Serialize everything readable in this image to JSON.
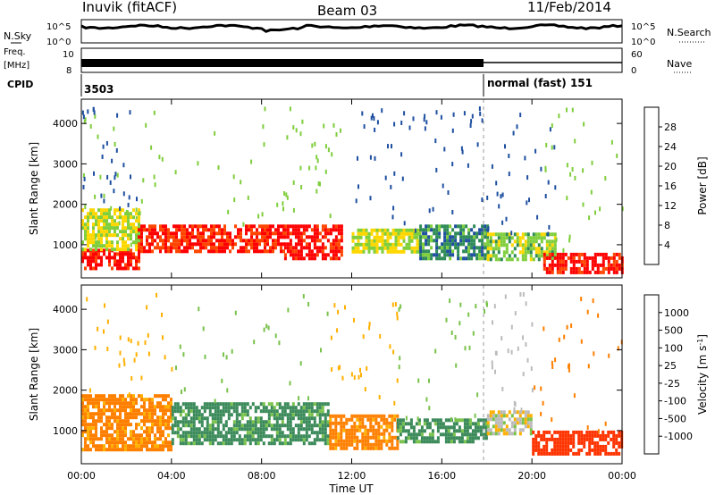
{
  "header": {
    "station": "Inuvik (fitACF)",
    "beam": "Beam 03",
    "date": "11/Feb/2014"
  },
  "strip_labels": {
    "nsky": "N.Sky",
    "nsky_top": "10^5",
    "nsky_bottom": "10^0",
    "nsearch": "N.Search",
    "nsearch_top": "10^5",
    "nsearch_bottom": "10^0",
    "freq_line1": "Freq.",
    "freq_line2": "[MHz]",
    "freq_top": "10",
    "freq_bottom": "8",
    "nave": "Nave",
    "nave_top": "60",
    "nave_bottom": "0",
    "cpid": "CPID",
    "cpid_value1": "3503",
    "cpid_value2": "normal (fast) 151"
  },
  "axes": {
    "ylabel": "Slant Range [km]",
    "xlabel": "Time UT",
    "xticks": [
      "00:00",
      "04:00",
      "08:00",
      "12:00",
      "16:00",
      "20:00",
      "00:00"
    ],
    "yticks": [
      "1000",
      "2000",
      "3000",
      "4000"
    ]
  },
  "power_bar": {
    "label": "Power [dB]",
    "ticks": [
      "28",
      "24",
      "20",
      "16",
      "12",
      "8",
      "4"
    ],
    "colors": [
      "#ff0000",
      "#ff4500",
      "#ff8c00",
      "#ffd700",
      "#7fce3c",
      "#2e8b57",
      "#1e4fa0",
      "#0000ff"
    ]
  },
  "velocity_bar": {
    "label": "Velocity [m s",
    "label_sup": "-1",
    "label_end": "]",
    "ticks": [
      "1000",
      "500",
      "100",
      "25",
      "-25",
      "-100",
      "-500",
      "-1000"
    ],
    "colors": [
      "#1a3a9e",
      "#2e6da4",
      "#3b8a5a",
      "#79c24b",
      "#bbbbbb",
      "#ffb000",
      "#ff7f00",
      "#ff3300",
      "#e00000"
    ]
  },
  "chart_data": [
    {
      "type": "heatmap",
      "title": "Power [dB]",
      "xlabel": "Time UT",
      "ylabel": "Slant Range [km]",
      "xlim": [
        0,
        24
      ],
      "ylim": [
        180,
        4600
      ],
      "x_unit": "hours UT",
      "bands": [
        {
          "t_start": 0.0,
          "t_end": 2.5,
          "range_km": [
            400,
            900
          ],
          "value_dB": 28
        },
        {
          "t_start": 0.0,
          "t_end": 2.5,
          "range_km": [
            900,
            1900
          ],
          "value_dB": 14
        },
        {
          "t_start": 2.5,
          "t_end": 9.0,
          "range_km": [
            800,
            1500
          ],
          "value_dB": 26
        },
        {
          "t_start": 9.0,
          "t_end": 11.5,
          "range_km": [
            700,
            1500
          ],
          "value_dB": 28
        },
        {
          "t_start": 12.0,
          "t_end": 15.0,
          "range_km": [
            800,
            1400
          ],
          "value_dB": 14
        },
        {
          "t_start": 15.0,
          "t_end": 18.0,
          "range_km": [
            700,
            1500
          ],
          "value_dB": 8
        },
        {
          "t_start": 18.0,
          "t_end": 21.0,
          "range_km": [
            600,
            1300
          ],
          "value_dB": 12
        },
        {
          "t_start": 20.5,
          "t_end": 24.0,
          "range_km": [
            300,
            800
          ],
          "value_dB": 28
        }
      ]
    },
    {
      "type": "heatmap",
      "title": "Velocity",
      "xlabel": "Time UT",
      "ylabel": "Slant Range [km]",
      "xlim": [
        0,
        24
      ],
      "ylim": [
        180,
        4600
      ],
      "x_unit": "hours UT",
      "bands": [
        {
          "t_start": 0.0,
          "t_end": 4.0,
          "range_km": [
            500,
            1900
          ],
          "value_m_s": -100
        },
        {
          "t_start": 4.0,
          "t_end": 11.0,
          "range_km": [
            700,
            1700
          ],
          "value_m_s": 100
        },
        {
          "t_start": 11.0,
          "t_end": 14.0,
          "range_km": [
            600,
            1400
          ],
          "value_m_s": -100
        },
        {
          "t_start": 14.0,
          "t_end": 18.0,
          "range_km": [
            700,
            1300
          ],
          "value_m_s": 100
        },
        {
          "t_start": 18.0,
          "t_end": 20.0,
          "range_km": [
            900,
            1500
          ],
          "value_m_s": 0
        },
        {
          "t_start": 20.0,
          "t_end": 24.0,
          "range_km": [
            400,
            1000
          ],
          "value_m_s": -500
        }
      ]
    }
  ]
}
